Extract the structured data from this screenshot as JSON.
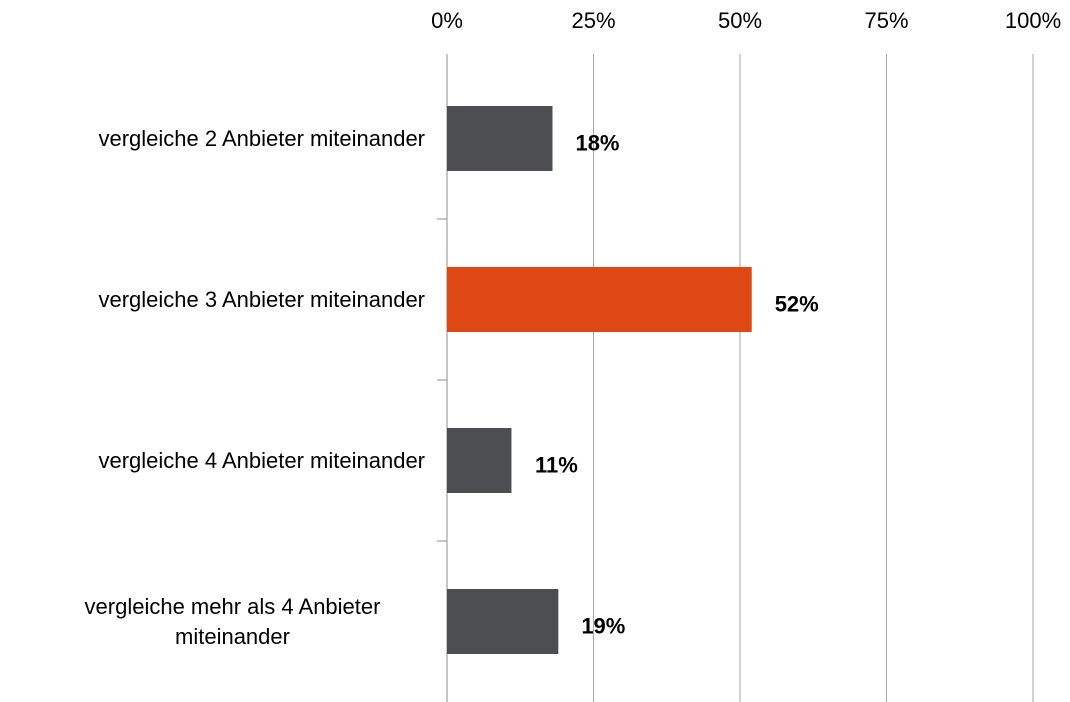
{
  "chart_data": {
    "type": "bar",
    "orientation": "horizontal",
    "categories": [
      "vergleiche 2 Anbieter miteinander",
      "vergleiche 3 Anbieter miteinander",
      "vergleiche 4 Anbieter miteinander",
      "vergleiche mehr als 4 Anbieter miteinander"
    ],
    "values": [
      18,
      52,
      11,
      19
    ],
    "value_labels": [
      "18%",
      "52%",
      "11%",
      "19%"
    ],
    "colors": [
      "#4d4e52",
      "#dd4814",
      "#4d4e52",
      "#4d4e52"
    ],
    "xlim": [
      0,
      100
    ],
    "xticks": [
      {
        "value": 0,
        "label": "0%"
      },
      {
        "value": 25,
        "label": "25%"
      },
      {
        "value": 50,
        "label": "50%"
      },
      {
        "value": 75,
        "label": "75%"
      },
      {
        "value": 100,
        "label": "100%"
      }
    ],
    "grid": true
  }
}
